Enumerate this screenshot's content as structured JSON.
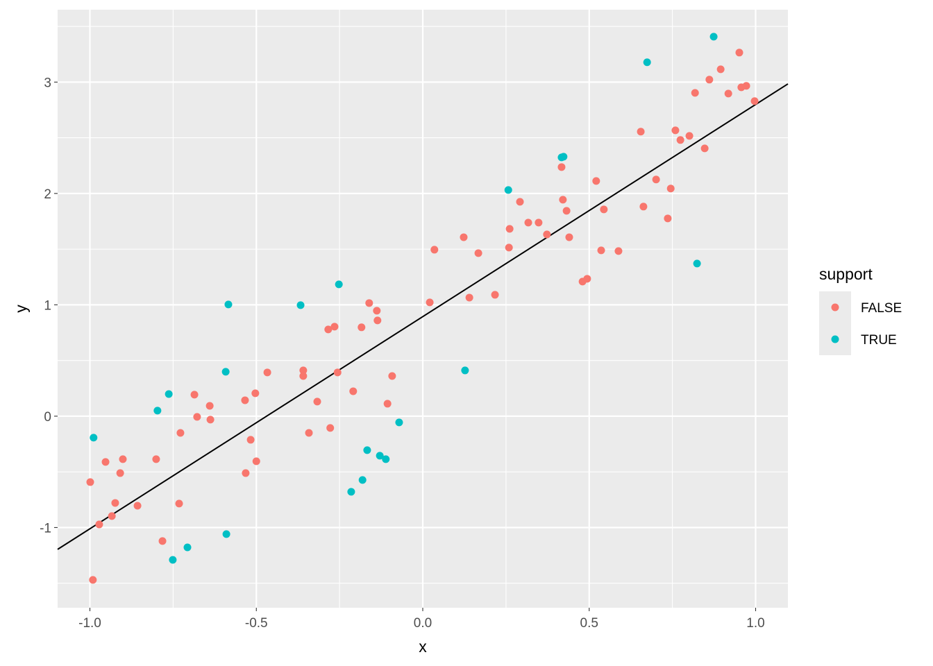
{
  "chart_data": {
    "type": "scatter",
    "title": "",
    "xlabel": "x",
    "ylabel": "y",
    "xlim": [
      -1.097,
      1.097
    ],
    "ylim": [
      -1.72,
      3.65
    ],
    "xticks": [
      -1.0,
      -0.5,
      0.0,
      0.5,
      1.0
    ],
    "xtick_labels": [
      "-1.0",
      "-0.5",
      "0.0",
      "0.5",
      "1.0"
    ],
    "yticks": [
      -1,
      0,
      1,
      2,
      3
    ],
    "ytick_labels": [
      "-1",
      "0",
      "1",
      "2",
      "3"
    ],
    "grid": true,
    "legend": {
      "title": "support",
      "placement": "right",
      "entries": [
        "FALSE",
        "TRUE"
      ]
    },
    "colors": {
      "FALSE": "#F8766D",
      "TRUE": "#00BFC4",
      "panel": "#EBEBEB",
      "line": "#000000"
    },
    "regression_line": {
      "slope": 1.905,
      "intercept": 0.894
    },
    "series": [
      {
        "name": "FALSE",
        "points": [
          [
            -0.999,
            -0.592
          ],
          [
            -0.991,
            -1.47
          ],
          [
            -0.972,
            -0.972
          ],
          [
            -0.953,
            -0.411
          ],
          [
            -0.934,
            -0.897
          ],
          [
            -0.924,
            -0.779
          ],
          [
            -0.909,
            -0.511
          ],
          [
            -0.901,
            -0.386
          ],
          [
            -0.857,
            -0.804
          ],
          [
            -0.801,
            -0.386
          ],
          [
            -0.782,
            -1.121
          ],
          [
            -0.732,
            -0.785
          ],
          [
            -0.728,
            -0.15
          ],
          [
            -0.686,
            0.193
          ],
          [
            -0.678,
            -0.006
          ],
          [
            -0.64,
            0.093
          ],
          [
            -0.638,
            -0.031
          ],
          [
            -0.534,
            0.143
          ],
          [
            -0.532,
            -0.511
          ],
          [
            -0.517,
            -0.212
          ],
          [
            -0.503,
            0.206
          ],
          [
            -0.5,
            -0.405
          ],
          [
            -0.467,
            0.393
          ],
          [
            -0.359,
            0.411
          ],
          [
            -0.359,
            0.361
          ],
          [
            -0.342,
            -0.15
          ],
          [
            -0.317,
            0.131
          ],
          [
            -0.284,
            0.779
          ],
          [
            -0.278,
            -0.106
          ],
          [
            -0.265,
            0.804
          ],
          [
            -0.256,
            0.393
          ],
          [
            -0.209,
            0.224
          ],
          [
            -0.184,
            0.798
          ],
          [
            -0.161,
            1.016
          ],
          [
            -0.138,
            0.947
          ],
          [
            -0.136,
            0.86
          ],
          [
            -0.106,
            0.112
          ],
          [
            -0.092,
            0.361
          ],
          [
            0.021,
            1.022
          ],
          [
            0.035,
            1.495
          ],
          [
            0.123,
            1.607
          ],
          [
            0.14,
            1.065
          ],
          [
            0.167,
            1.464
          ],
          [
            0.217,
            1.09
          ],
          [
            0.259,
            1.514
          ],
          [
            0.261,
            1.682
          ],
          [
            0.292,
            1.925
          ],
          [
            0.317,
            1.738
          ],
          [
            0.348,
            1.738
          ],
          [
            0.373,
            1.632
          ],
          [
            0.417,
            2.237
          ],
          [
            0.421,
            1.944
          ],
          [
            0.432,
            1.844
          ],
          [
            0.44,
            1.607
          ],
          [
            0.48,
            1.209
          ],
          [
            0.494,
            1.234
          ],
          [
            0.521,
            2.112
          ],
          [
            0.536,
            1.489
          ],
          [
            0.544,
            1.857
          ],
          [
            0.588,
            1.483
          ],
          [
            0.655,
            2.555
          ],
          [
            0.663,
            1.882
          ],
          [
            0.701,
            2.125
          ],
          [
            0.736,
            1.776
          ],
          [
            0.745,
            2.044
          ],
          [
            0.759,
            2.567
          ],
          [
            0.774,
            2.48
          ],
          [
            0.801,
            2.517
          ],
          [
            0.818,
            2.903
          ],
          [
            0.847,
            2.405
          ],
          [
            0.861,
            3.022
          ],
          [
            0.895,
            3.115
          ],
          [
            0.918,
            2.897
          ],
          [
            0.951,
            3.265
          ],
          [
            0.957,
            2.953
          ],
          [
            0.972,
            2.966
          ],
          [
            0.997,
            2.829
          ]
        ]
      },
      {
        "name": "TRUE",
        "points": [
          [
            -0.989,
            -0.193
          ],
          [
            -0.797,
            0.05
          ],
          [
            -0.763,
            0.199
          ],
          [
            -0.751,
            -1.29
          ],
          [
            -0.707,
            -1.178
          ],
          [
            -0.592,
            0.399
          ],
          [
            -0.59,
            -1.059
          ],
          [
            -0.584,
            1.003
          ],
          [
            -0.367,
            0.997
          ],
          [
            -0.252,
            1.184
          ],
          [
            -0.215,
            -0.679
          ],
          [
            -0.181,
            -0.573
          ],
          [
            -0.167,
            -0.305
          ],
          [
            -0.129,
            -0.355
          ],
          [
            -0.111,
            -0.386
          ],
          [
            -0.071,
            -0.056
          ],
          [
            0.127,
            0.411
          ],
          [
            0.257,
            2.031
          ],
          [
            0.417,
            2.324
          ],
          [
            0.423,
            2.33
          ],
          [
            0.674,
            3.178
          ],
          [
            0.824,
            1.371
          ],
          [
            0.874,
            3.408
          ]
        ]
      }
    ]
  }
}
